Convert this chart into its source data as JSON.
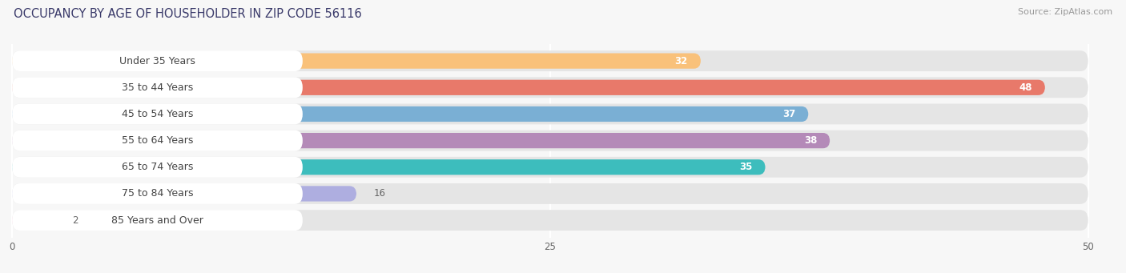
{
  "title": "OCCUPANCY BY AGE OF HOUSEHOLDER IN ZIP CODE 56116",
  "source": "Source: ZipAtlas.com",
  "categories": [
    "Under 35 Years",
    "35 to 44 Years",
    "45 to 54 Years",
    "55 to 64 Years",
    "65 to 74 Years",
    "75 to 84 Years",
    "85 Years and Over"
  ],
  "values": [
    32,
    48,
    37,
    38,
    35,
    16,
    2
  ],
  "bar_colors": [
    "#F9C17A",
    "#E8796A",
    "#7AAFD4",
    "#B48AB8",
    "#3DBDBD",
    "#AEAEE0",
    "#F4A8C0"
  ],
  "xlim_max": 50,
  "xticks": [
    0,
    25,
    50
  ],
  "background_color": "#f7f7f7",
  "bar_bg_color": "#e5e5e5",
  "title_fontsize": 10.5,
  "source_fontsize": 8,
  "label_fontsize": 9,
  "value_fontsize": 8.5,
  "title_color": "#3a3a6a",
  "label_color": "#444444",
  "value_color_inside": "#ffffff",
  "value_color_outside": "#666666",
  "grid_color": "#ffffff",
  "pill_color": "#ffffff"
}
